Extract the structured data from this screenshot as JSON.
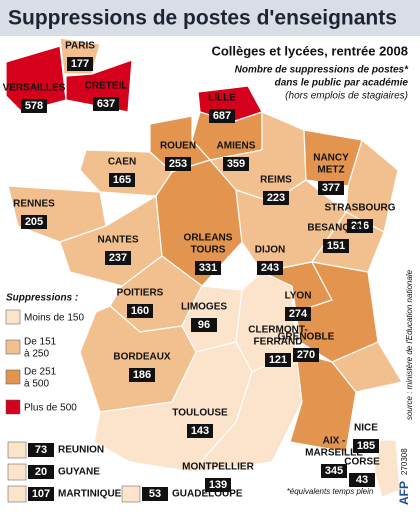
{
  "title": "Suppressions de postes d'enseignants",
  "subtitle": "Collèges et lycées, rentrée 2008",
  "description": [
    "Nombre de suppressions de postes*",
    "dans le public par académie",
    "(hors emplois de stagiaires)"
  ],
  "source": "source : ministère de l'Education nationale",
  "legend": {
    "title": "Suppressions :",
    "items": [
      {
        "label": [
          "Moins de 150"
        ],
        "color": "#fbe3cc"
      },
      {
        "label": [
          "De 151",
          "à 250"
        ],
        "color": "#f2c08f"
      },
      {
        "label": [
          "De 251",
          "à 500"
        ],
        "color": "#e3954f"
      },
      {
        "label": [
          "Plus de 500"
        ],
        "color": "#d5001c"
      }
    ]
  },
  "academies": [
    {
      "name": [
        "PARIS"
      ],
      "value": 177
    },
    {
      "name": [
        "VERSAILLES"
      ],
      "value": 578
    },
    {
      "name": [
        "CRETEIL"
      ],
      "value": 637
    },
    {
      "name": [
        "LILLE"
      ],
      "value": 687
    },
    {
      "name": [
        "AMIENS"
      ],
      "value": 359
    },
    {
      "name": [
        "ROUEN"
      ],
      "value": 253
    },
    {
      "name": [
        "CAEN"
      ],
      "value": 165
    },
    {
      "name": [
        "RENNES"
      ],
      "value": 205
    },
    {
      "name": [
        "NANTES"
      ],
      "value": 237
    },
    {
      "name": [
        "ORLEANS",
        "TOURS"
      ],
      "value": 331
    },
    {
      "name": [
        "REIMS"
      ],
      "value": 223
    },
    {
      "name": [
        "NANCY",
        "METZ"
      ],
      "value": 377
    },
    {
      "name": [
        "STRASBOURG"
      ],
      "value": 216
    },
    {
      "name": [
        "DIJON"
      ],
      "value": 243
    },
    {
      "name": [
        "BESANÇON"
      ],
      "value": 151
    },
    {
      "name": [
        "POITIERS"
      ],
      "value": 160
    },
    {
      "name": [
        "LIMOGES"
      ],
      "value": 96
    },
    {
      "name": [
        "CLERMONT-",
        "FERRAND"
      ],
      "value": 121
    },
    {
      "name": [
        "LYON"
      ],
      "value": 274
    },
    {
      "name": [
        "GRENOBLE"
      ],
      "value": 270
    },
    {
      "name": [
        "BORDEAUX"
      ],
      "value": 186
    },
    {
      "name": [
        "TOULOUSE"
      ],
      "value": 143
    },
    {
      "name": [
        "MONTPELLIER"
      ],
      "value": 139
    },
    {
      "name": [
        "AIX -",
        "MARSEILLE"
      ],
      "value": 345
    },
    {
      "name": [
        "NICE"
      ],
      "value": 185
    },
    {
      "name": [
        "CORSE"
      ],
      "value": 43
    }
  ],
  "overseas": [
    {
      "name": "REUNION",
      "value": 73
    },
    {
      "name": "GUYANE",
      "value": 20
    },
    {
      "name": "MARTINIQUE",
      "value": 107
    },
    {
      "name": "GUADELOUPE",
      "value": 53
    }
  ],
  "footnote": "*équivalents temps plein",
  "credit": "AFP",
  "date": "270308"
}
